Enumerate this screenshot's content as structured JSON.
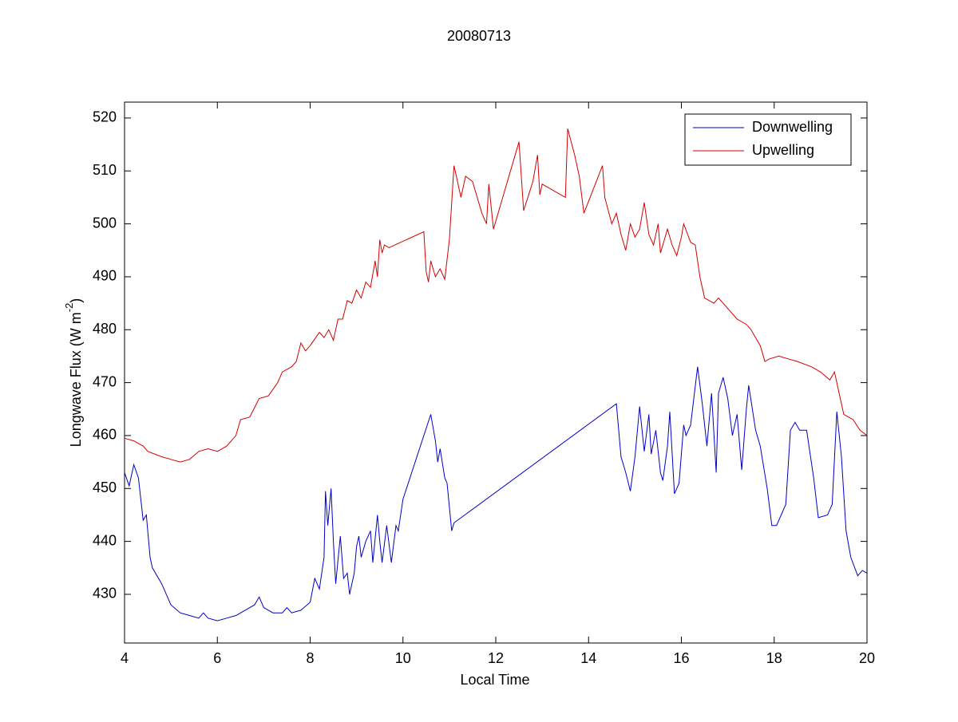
{
  "chart_data": {
    "type": "line",
    "title": "20080713",
    "xlabel": "Local Time",
    "ylabel": [
      "Longwave Flux (W m",
      "-2",
      ")"
    ],
    "xlim": [
      4,
      20
    ],
    "ylim": [
      420.8,
      523
    ],
    "xticks": [
      4,
      6,
      8,
      10,
      12,
      14,
      16,
      18,
      20
    ],
    "yticks": [
      430,
      440,
      450,
      460,
      470,
      480,
      490,
      500,
      510,
      520
    ],
    "legend": "top-right",
    "series": [
      {
        "name": "Downwelling",
        "color": "#0000c8",
        "x": [
          4.0,
          4.1,
          4.2,
          4.3,
          4.4,
          4.47,
          4.55,
          4.6,
          4.8,
          5.0,
          5.2,
          5.4,
          5.6,
          5.7,
          5.8,
          6.0,
          6.2,
          6.4,
          6.6,
          6.8,
          6.9,
          7.0,
          7.1,
          7.2,
          7.4,
          7.5,
          7.6,
          7.8,
          8.0,
          8.1,
          8.2,
          8.3,
          8.33,
          8.38,
          8.45,
          8.5,
          8.55,
          8.65,
          8.72,
          8.8,
          8.85,
          8.95,
          9.0,
          9.05,
          9.1,
          9.2,
          9.3,
          9.35,
          9.45,
          9.5,
          9.55,
          9.65,
          9.75,
          9.85,
          9.9,
          10.0,
          10.6,
          10.7,
          10.75,
          10.8,
          10.9,
          10.95,
          11.05,
          11.1,
          14.6,
          14.7,
          14.8,
          14.9,
          15.0,
          15.1,
          15.2,
          15.3,
          15.35,
          15.45,
          15.55,
          15.6,
          15.7,
          15.75,
          15.85,
          15.95,
          16.05,
          16.1,
          16.2,
          16.35,
          16.45,
          16.55,
          16.65,
          16.75,
          16.8,
          16.9,
          17.0,
          17.1,
          17.2,
          17.3,
          17.4,
          17.45,
          17.6,
          17.7,
          17.85,
          17.95,
          18.05,
          18.15,
          18.25,
          18.35,
          18.45,
          18.55,
          18.7,
          18.85,
          18.95,
          19.15,
          19.25,
          19.35,
          19.45,
          19.55,
          19.65,
          19.8,
          19.9,
          20.0
        ],
        "values": [
          453,
          450.5,
          454.5,
          452,
          444,
          445,
          437,
          435,
          432,
          428,
          426.5,
          426,
          425.5,
          426.5,
          425.5,
          425,
          425.5,
          426,
          427,
          428,
          429.5,
          427.5,
          427,
          426.5,
          426.5,
          427.5,
          426.5,
          427,
          428.5,
          433,
          431,
          437,
          449.5,
          443,
          450,
          440,
          432,
          441,
          433,
          434,
          430,
          434,
          439,
          441,
          437,
          440,
          442,
          436,
          445,
          440,
          436,
          443,
          436,
          443,
          442,
          448,
          464,
          459,
          455,
          457.5,
          452,
          451,
          442,
          443.5,
          466,
          456,
          453,
          449.5,
          456,
          465.5,
          457,
          464,
          456.5,
          461,
          453,
          451.5,
          458,
          464.5,
          449,
          451,
          462,
          460,
          462,
          473,
          466,
          458,
          468,
          453,
          468,
          471,
          467,
          460,
          464,
          453.5,
          465,
          469.5,
          461,
          458,
          450,
          443,
          443,
          445,
          447,
          461,
          462.5,
          461,
          461,
          452,
          444.5,
          445,
          447,
          464.5,
          456,
          442,
          437,
          433.5,
          434.5,
          434
        ]
      },
      {
        "name": "Upwelling",
        "color": "#d40000",
        "x": [
          4.0,
          4.2,
          4.4,
          4.5,
          4.8,
          5.0,
          5.2,
          5.4,
          5.6,
          5.8,
          6.0,
          6.2,
          6.4,
          6.5,
          6.7,
          6.9,
          7.1,
          7.3,
          7.4,
          7.6,
          7.7,
          7.8,
          7.9,
          8.0,
          8.2,
          8.3,
          8.4,
          8.5,
          8.6,
          8.7,
          8.8,
          8.9,
          9.0,
          9.1,
          9.2,
          9.3,
          9.4,
          9.45,
          9.5,
          9.55,
          9.6,
          9.7,
          10.45,
          10.5,
          10.55,
          10.6,
          10.7,
          10.8,
          10.9,
          11.0,
          11.1,
          11.25,
          11.35,
          11.5,
          11.7,
          11.8,
          11.85,
          11.95,
          12.5,
          12.6,
          12.8,
          12.9,
          12.95,
          13.0,
          13.5,
          13.55,
          13.7,
          13.8,
          13.9,
          14.3,
          14.35,
          14.5,
          14.6,
          14.7,
          14.8,
          14.9,
          15.0,
          15.1,
          15.2,
          15.3,
          15.4,
          15.5,
          15.55,
          15.7,
          15.8,
          15.9,
          16.0,
          16.05,
          16.2,
          16.3,
          16.4,
          16.5,
          16.7,
          16.8,
          17.0,
          17.2,
          17.4,
          17.5,
          17.7,
          17.8,
          17.9,
          18.1,
          18.3,
          18.5,
          18.8,
          19.0,
          19.2,
          19.3,
          19.4,
          19.5,
          19.7,
          19.85,
          20.0
        ],
        "values": [
          459.5,
          459,
          458,
          457,
          456,
          455.5,
          455,
          455.5,
          457,
          457.5,
          457,
          458,
          460,
          463,
          463.5,
          467,
          467.5,
          470,
          472,
          473,
          474,
          477.5,
          476,
          477,
          479.5,
          478.5,
          480,
          478,
          482,
          482,
          485.5,
          485,
          487.5,
          486,
          489,
          488,
          493,
          490,
          497,
          494.5,
          496,
          495.5,
          498.5,
          491,
          489,
          493,
          490,
          491.5,
          489.5,
          497,
          511,
          505,
          509,
          508,
          502,
          500,
          507.5,
          499,
          515.5,
          502.5,
          508,
          513,
          505.5,
          507.5,
          505,
          518,
          513,
          509,
          502,
          511,
          505,
          500,
          502,
          498,
          495,
          500,
          497.5,
          499,
          504,
          498,
          496,
          500,
          494.5,
          499,
          496,
          494,
          497.5,
          500,
          496.5,
          496,
          490,
          486,
          485,
          486,
          484,
          482,
          481,
          480,
          477,
          474,
          474.5,
          475,
          474.5,
          474,
          473,
          472,
          470.5,
          472,
          468,
          464,
          463,
          461,
          460
        ]
      }
    ]
  }
}
